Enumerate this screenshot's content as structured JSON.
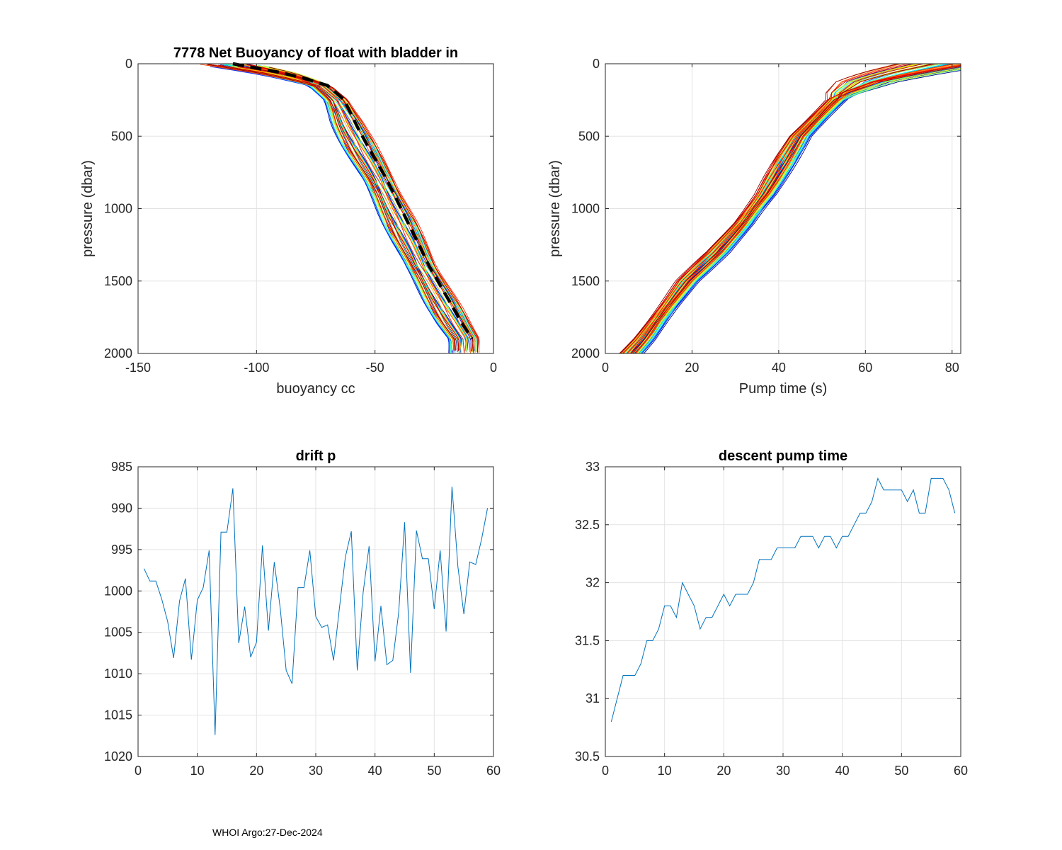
{
  "footer": "WHOI Argo:27-Dec-2024",
  "chart_data": [
    {
      "type": "line",
      "title": "7778 Net Buoyancy of float with bladder in",
      "xlabel": "buoyancy cc",
      "ylabel": "pressure (dbar)",
      "xlim": [
        -150,
        0
      ],
      "ylim": [
        0,
        2000
      ],
      "y_reversed": true,
      "grid": true,
      "xticks": [
        -150,
        -100,
        -50,
        0
      ],
      "yticks": [
        0,
        500,
        1000,
        1500,
        2000
      ],
      "series_count": 59,
      "colormap": "jet",
      "reference_profile": {
        "style": "black dashed",
        "p": [
          0,
          30,
          60,
          100,
          150,
          250,
          350,
          450,
          600,
          800,
          1000,
          1200,
          1400,
          1600,
          1800,
          1900
        ],
        "buoyancy": [
          -110,
          -100,
          -90,
          -80,
          -70,
          -63,
          -60,
          -57,
          -52,
          -45,
          -39,
          -33,
          -27,
          -20,
          -13,
          -9
        ]
      }
    },
    {
      "type": "line",
      "title": "",
      "xlabel": "Pump time (s)",
      "ylabel": "pressure (dbar)",
      "xlim": [
        0,
        82
      ],
      "ylim": [
        0,
        2000
      ],
      "y_reversed": true,
      "grid": true,
      "xticks": [
        0,
        20,
        40,
        60,
        80
      ],
      "yticks": [
        0,
        500,
        1000,
        1500,
        2000
      ],
      "series_count": 59,
      "colormap": "jet",
      "reference_profile": {
        "p": [
          0,
          60,
          120,
          200,
          350,
          500,
          700,
          900,
          1100,
          1300,
          1500,
          1700,
          1900,
          2000
        ],
        "pump_time": [
          78,
          68,
          60,
          55,
          50,
          45,
          41,
          37,
          32,
          26,
          19,
          14,
          9,
          6
        ]
      }
    },
    {
      "type": "line",
      "title": "drift p",
      "xlabel": "",
      "ylabel": "",
      "xlim": [
        0,
        60
      ],
      "ylim": [
        985,
        1020
      ],
      "y_reversed": true,
      "grid": true,
      "xticks": [
        0,
        10,
        20,
        30,
        40,
        50,
        60
      ],
      "yticks": [
        985,
        990,
        995,
        1000,
        1005,
        1010,
        1015,
        1020
      ],
      "color": "#0072bd",
      "x": [
        1,
        2,
        3,
        4,
        5,
        6,
        7,
        8,
        9,
        10,
        11,
        12,
        13,
        14,
        15,
        16,
        17,
        18,
        19,
        20,
        21,
        22,
        23,
        24,
        25,
        26,
        27,
        28,
        29,
        30,
        31,
        32,
        33,
        34,
        35,
        36,
        37,
        38,
        39,
        40,
        41,
        42,
        43,
        44,
        45,
        46,
        47,
        48,
        49,
        50,
        51,
        52,
        53,
        54,
        55,
        56,
        57,
        58,
        59
      ],
      "values": [
        997.3,
        998.8,
        998.8,
        1001.0,
        1003.7,
        1008.1,
        1001.2,
        998.5,
        1008.3,
        1001.1,
        999.6,
        995.1,
        1017.4,
        992.9,
        992.9,
        987.6,
        1006.3,
        1001.9,
        1008.0,
        1006.2,
        994.5,
        1004.8,
        996.5,
        1002.1,
        1009.6,
        1011.2,
        999.6,
        999.6,
        995.1,
        1003.1,
        1004.4,
        1004.1,
        1008.4,
        1002.0,
        995.9,
        992.8,
        1009.6,
        1000.2,
        994.6,
        1008.5,
        1001.8,
        1008.9,
        1008.4,
        1002.6,
        991.7,
        1009.9,
        992.7,
        996.1,
        996.1,
        1002.2,
        995.1,
        1004.9,
        987.4,
        997.1,
        1002.8,
        996.5,
        996.8,
        993.7,
        990.0
      ]
    },
    {
      "type": "line",
      "title": "descent pump time",
      "xlabel": "",
      "ylabel": "",
      "xlim": [
        0,
        60
      ],
      "ylim": [
        30.5,
        33
      ],
      "y_reversed": false,
      "grid": true,
      "xticks": [
        0,
        10,
        20,
        30,
        40,
        50,
        60
      ],
      "yticks": [
        30.5,
        31,
        31.5,
        32,
        32.5,
        33
      ],
      "color": "#0072bd",
      "x": [
        1,
        2,
        3,
        4,
        5,
        6,
        7,
        8,
        9,
        10,
        11,
        12,
        13,
        14,
        15,
        16,
        17,
        18,
        19,
        20,
        21,
        22,
        23,
        24,
        25,
        26,
        27,
        28,
        29,
        30,
        31,
        32,
        33,
        34,
        35,
        36,
        37,
        38,
        39,
        40,
        41,
        42,
        43,
        44,
        45,
        46,
        47,
        48,
        49,
        50,
        51,
        52,
        53,
        54,
        55,
        56,
        57,
        58,
        59
      ],
      "values": [
        30.8,
        31.0,
        31.2,
        31.2,
        31.2,
        31.3,
        31.5,
        31.5,
        31.6,
        31.8,
        31.8,
        31.7,
        32.0,
        31.9,
        31.8,
        31.6,
        31.7,
        31.7,
        31.8,
        31.9,
        31.8,
        31.9,
        31.9,
        31.9,
        32.0,
        32.2,
        32.2,
        32.2,
        32.3,
        32.3,
        32.3,
        32.3,
        32.4,
        32.4,
        32.4,
        32.3,
        32.4,
        32.4,
        32.3,
        32.4,
        32.4,
        32.5,
        32.6,
        32.6,
        32.7,
        32.9,
        32.8,
        32.8,
        32.8,
        32.8,
        32.7,
        32.8,
        32.6,
        32.6,
        32.9,
        32.9,
        32.9,
        32.8,
        32.6
      ]
    }
  ]
}
